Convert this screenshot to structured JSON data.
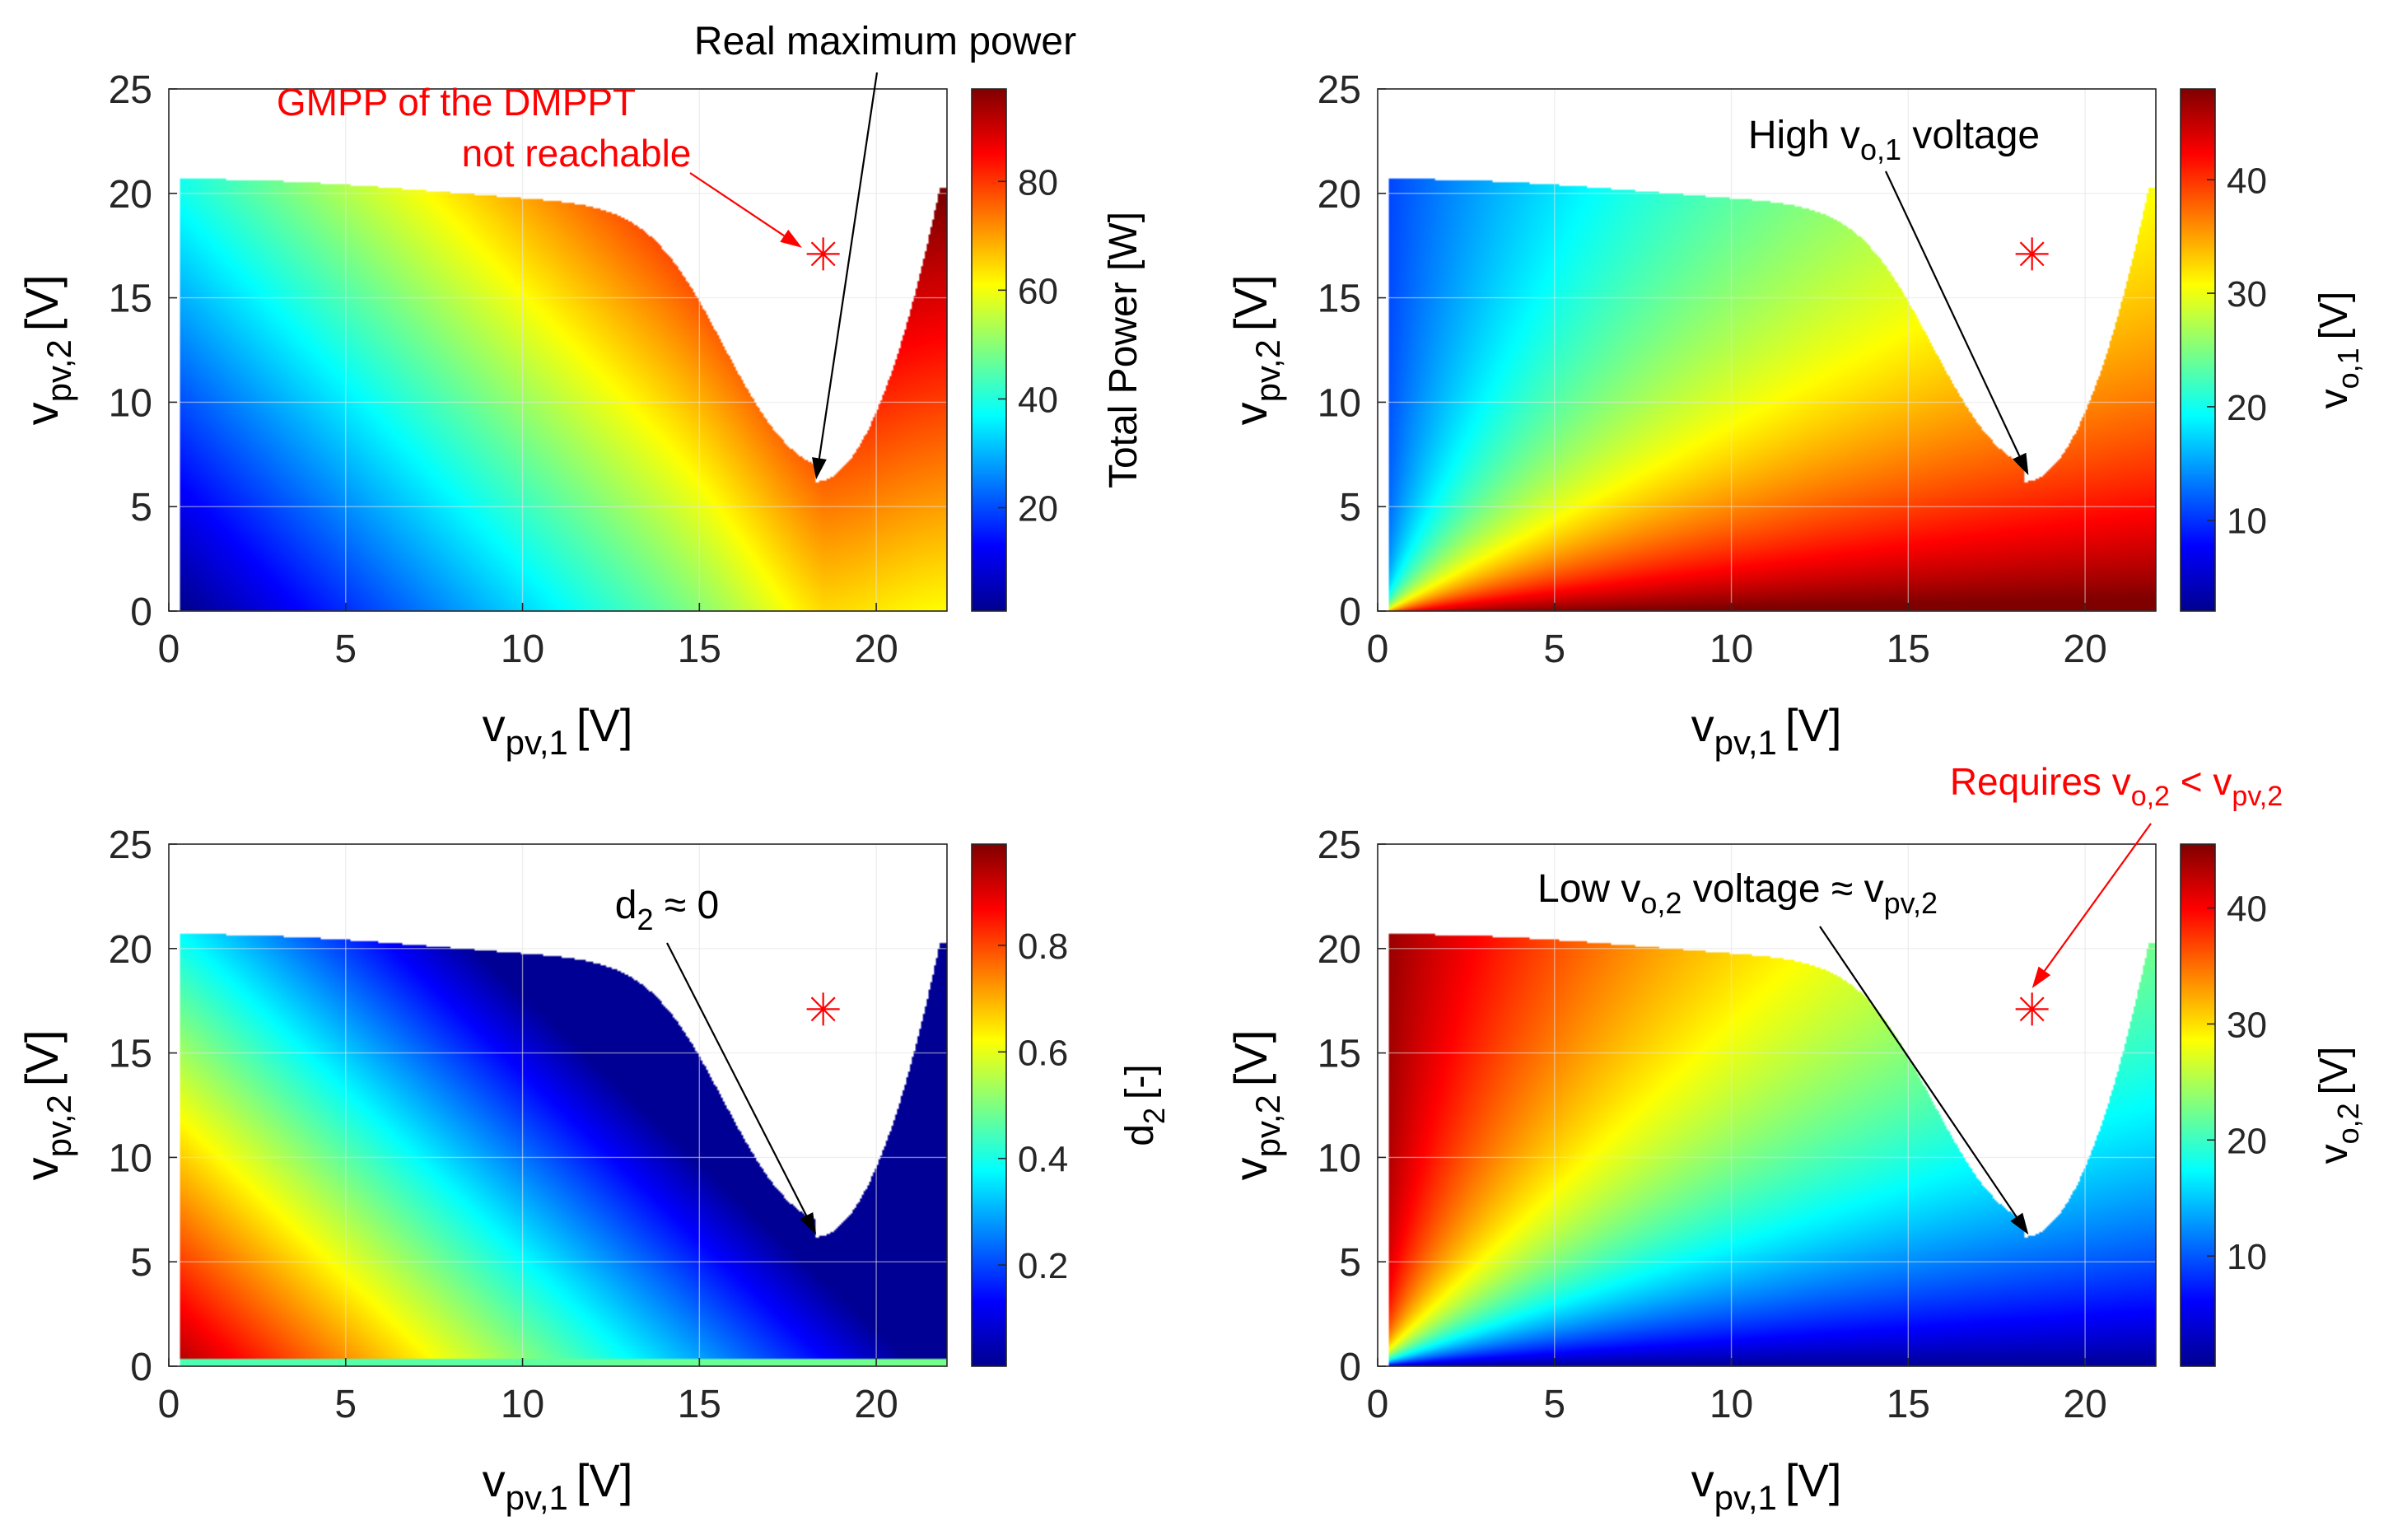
{
  "colors": {
    "red": "#ff0000",
    "black": "#000000",
    "grid": "#e3e3e3",
    "unreachable": "#ffffff"
  },
  "chart_data": [
    {
      "type": "heatmap",
      "id": "p1",
      "xlabel_main": "v",
      "xlabel_sub": "pv,1",
      "xlabel_unit": "[V]",
      "ylabel_main": "v",
      "ylabel_sub": "pv,2",
      "ylabel_unit": "[V]",
      "xlim": [
        0,
        22
      ],
      "ylim": [
        0,
        25
      ],
      "xticks": [
        "0",
        "5",
        "10",
        "15",
        "20"
      ],
      "yticks": [
        "0",
        "5",
        "10",
        "15",
        "20",
        "25"
      ],
      "colorbar": {
        "label": "Total Power [W]",
        "ticks": [
          "20",
          "40",
          "60",
          "80"
        ],
        "tick_values": [
          20,
          40,
          60,
          80
        ],
        "range": [
          1,
          97
        ]
      },
      "marker": {
        "symbol": "asterisk",
        "x": 18.5,
        "y": 17.1
      },
      "annotations": [
        {
          "id": "real-max",
          "text": "Real maximum power",
          "arrow_to": [
            18.3,
            6.3
          ]
        },
        {
          "id": "gmpp",
          "line1": "GMPP of the DMPPT",
          "line2": "not reachable",
          "arrow_to": [
            17.9,
            17.4
          ]
        }
      ]
    },
    {
      "type": "heatmap",
      "id": "p2",
      "xlabel_main": "v",
      "xlabel_sub": "pv,1",
      "xlabel_unit": "[V]",
      "ylabel_main": "v",
      "ylabel_sub": "pv,2",
      "ylabel_unit": "[V]",
      "xlim": [
        0,
        22
      ],
      "ylim": [
        0,
        25
      ],
      "xticks": [
        "0",
        "5",
        "10",
        "15",
        "20"
      ],
      "yticks": [
        "0",
        "5",
        "10",
        "15",
        "20",
        "25"
      ],
      "colorbar": {
        "label_main": "v",
        "label_sub": "o,1",
        "label_unit": "[V]",
        "ticks": [
          "10",
          "20",
          "30",
          "40"
        ],
        "tick_values": [
          10,
          20,
          30,
          40
        ],
        "range": [
          2,
          48
        ]
      },
      "marker": {
        "symbol": "asterisk",
        "x": 18.5,
        "y": 17.1
      },
      "annotations": [
        {
          "id": "high-vo1",
          "pre": "High v",
          "sub": "o,1",
          "post": " voltage",
          "arrow_to": [
            18.4,
            6.5
          ]
        }
      ]
    },
    {
      "type": "heatmap",
      "id": "p3",
      "xlabel_main": "v",
      "xlabel_sub": "pv,1",
      "xlabel_unit": "[V]",
      "ylabel_main": "v",
      "ylabel_sub": "pv,2",
      "ylabel_unit": "[V]",
      "xlim": [
        0,
        22
      ],
      "ylim": [
        0,
        25
      ],
      "xticks": [
        "0",
        "5",
        "10",
        "15",
        "20"
      ],
      "yticks": [
        "0",
        "5",
        "10",
        "15",
        "20",
        "25"
      ],
      "colorbar": {
        "label_main": "d",
        "label_sub": "2",
        "label_unit": "[-]",
        "ticks": [
          "0.2",
          "0.4",
          "0.6",
          "0.8"
        ],
        "tick_values": [
          0.2,
          0.4,
          0.6,
          0.8
        ],
        "range": [
          0.01,
          0.99
        ]
      },
      "marker": {
        "symbol": "asterisk",
        "x": 18.5,
        "y": 17.1
      },
      "annotations": [
        {
          "id": "d2-zero",
          "pre": "d",
          "sub": "2",
          "post": " ≈ 0",
          "arrow_to": [
            18.3,
            6.3
          ]
        }
      ]
    },
    {
      "type": "heatmap",
      "id": "p4",
      "xlabel_main": "v",
      "xlabel_sub": "pv,1",
      "xlabel_unit": "[V]",
      "ylabel_main": "v",
      "ylabel_sub": "pv,2",
      "ylabel_unit": "[V]",
      "xlim": [
        0,
        22
      ],
      "ylim": [
        0,
        25
      ],
      "xticks": [
        "0",
        "5",
        "10",
        "15",
        "20"
      ],
      "yticks": [
        "0",
        "5",
        "10",
        "15",
        "20",
        "25"
      ],
      "colorbar": {
        "label_main": "v",
        "label_sub": "o,2",
        "label_unit": "[V]",
        "ticks": [
          "10",
          "20",
          "30",
          "40"
        ],
        "tick_values": [
          10,
          20,
          30,
          40
        ],
        "range": [
          0.5,
          45.5
        ]
      },
      "marker": {
        "symbol": "asterisk",
        "x": 18.5,
        "y": 17.1
      },
      "annotations": [
        {
          "id": "low-vo2",
          "pre": "Low v",
          "sub": "o,2",
          "mid": " voltage ≈ v",
          "sub2": "pv,2",
          "arrow_to": [
            18.4,
            6.3
          ]
        },
        {
          "id": "requires",
          "pre": "Requires v",
          "sub": "o,2",
          "mid": " < v",
          "sub2": "pv,2",
          "arrow_to": [
            18.5,
            18.1
          ]
        }
      ]
    }
  ]
}
